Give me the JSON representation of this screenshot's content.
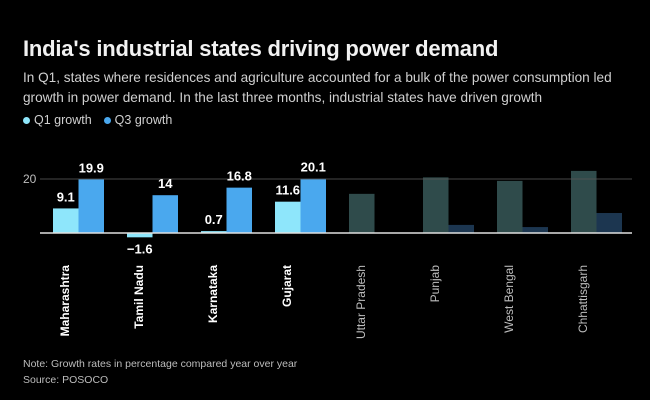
{
  "header": {
    "title": "India's industrial states driving power demand",
    "subtitle": "In Q1, states where residences and agriculture accounted for a bulk of the power consumption led growth in power demand. In the last three months, industrial states have driven growth"
  },
  "footer": {
    "note": "Note: Growth rates in percentage compared year over year",
    "source": "Source: POSOCO"
  },
  "colors": {
    "q1_highlight": "#8ee6fb",
    "q3_highlight": "#4aa8ee",
    "q1_muted": "#2f4b4b",
    "q3_muted": "#1c3650",
    "label_bright": "#ffffff",
    "label_muted": "#bdbdbd",
    "gridline": "#555555",
    "baseline": "#e0e0e0"
  },
  "chart_data": {
    "type": "bar",
    "title": "India's industrial states driving power demand",
    "xlabel": "",
    "ylabel": "",
    "ylim": [
      -3,
      24
    ],
    "yticks": [
      20
    ],
    "grid": true,
    "legend": {
      "placement": "top-left",
      "entries": [
        "Q1 growth",
        "Q3 growth"
      ]
    },
    "categories": [
      "Maharashtra",
      "Tamil Nadu",
      "Karnataka",
      "Gujarat",
      "Uttar Pradesh",
      "Punjab",
      "West Bengal",
      "Chhattisgarh"
    ],
    "highlighted": [
      true,
      true,
      true,
      true,
      false,
      false,
      false,
      false
    ],
    "series": [
      {
        "name": "Q1 growth",
        "values": [
          9.1,
          -1.6,
          0.7,
          11.6,
          14.5,
          20.6,
          19.3,
          23.0
        ],
        "labels": [
          "9.1",
          "−1.6",
          "0.7",
          "11.6",
          "",
          "",
          "",
          ""
        ]
      },
      {
        "name": "Q3 growth",
        "values": [
          19.9,
          14,
          16.8,
          20.1,
          0,
          3.0,
          2.2,
          7.4
        ],
        "labels": [
          "19.9",
          "14",
          "16.8",
          "20.1",
          "",
          "",
          "",
          ""
        ]
      }
    ]
  }
}
